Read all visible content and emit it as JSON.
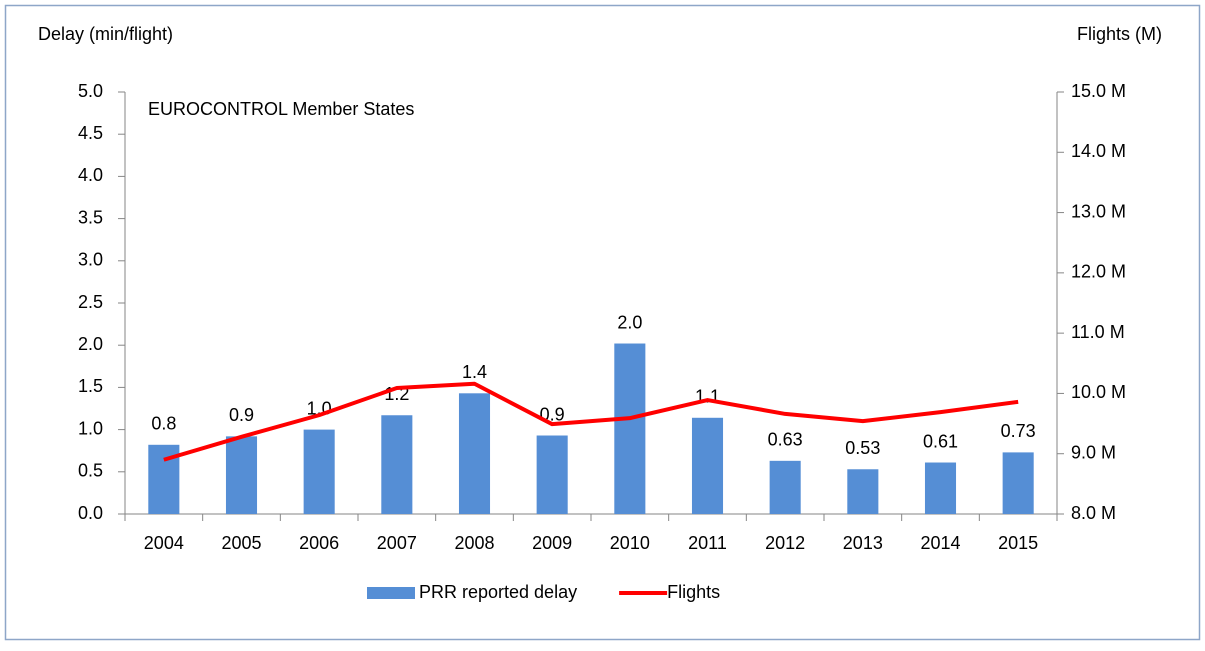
{
  "chart_data": {
    "type": "bar_line",
    "y_label": "Delay (min/flight)",
    "y2_label": "Flights (M)",
    "annotation": "EUROCONTROL Member States",
    "categories": [
      "2004",
      "2005",
      "2006",
      "2007",
      "2008",
      "2009",
      "2010",
      "2011",
      "2012",
      "2013",
      "2014",
      "2015"
    ],
    "series": [
      {
        "name": "PRR reported delay",
        "type": "bar",
        "color": "#558ed5",
        "values": [
          0.82,
          0.92,
          1.0,
          1.17,
          1.43,
          0.93,
          2.02,
          1.14,
          0.63,
          0.53,
          0.61,
          0.73
        ],
        "value_labels": [
          "0.8",
          "0.9",
          "1.0",
          "1.2",
          "1.4",
          "0.9",
          "2.0",
          "1.1",
          "0.63",
          "0.53",
          "0.61",
          "0.73"
        ]
      },
      {
        "name": "Flights",
        "type": "line",
        "color": "#ff0000",
        "axis": "y2",
        "values": [
          8.9,
          9.28,
          9.64,
          10.09,
          10.16,
          9.49,
          9.59,
          9.89,
          9.66,
          9.54,
          9.69,
          9.86
        ]
      }
    ],
    "ylim": [
      0,
      5
    ],
    "yticks": [
      {
        "value": 0,
        "label": "0.0"
      },
      0.5,
      {
        "value": 1,
        "label": "1.0"
      },
      1.5,
      {
        "value": 2,
        "label": "2.0"
      },
      2.5,
      {
        "value": 3,
        "label": "3.0"
      },
      3.5,
      {
        "value": 4,
        "label": "4.0"
      },
      4.5,
      {
        "value": 5,
        "label": "5.0"
      }
    ],
    "y2lim": [
      8,
      15
    ],
    "y2ticks": [
      {
        "value": 8,
        "label": "8.0 M"
      },
      {
        "value": 9,
        "label": "9.0 M"
      },
      {
        "value": 10,
        "label": "10.0 M"
      },
      {
        "value": 11,
        "label": "11.0 M"
      },
      {
        "value": 12,
        "label": "12.0 M"
      },
      {
        "value": 13,
        "label": "13.0 M"
      },
      {
        "value": 14,
        "label": "14.0 M"
      },
      {
        "value": 15,
        "label": "15.0 M"
      }
    ],
    "legend": "bottom"
  }
}
